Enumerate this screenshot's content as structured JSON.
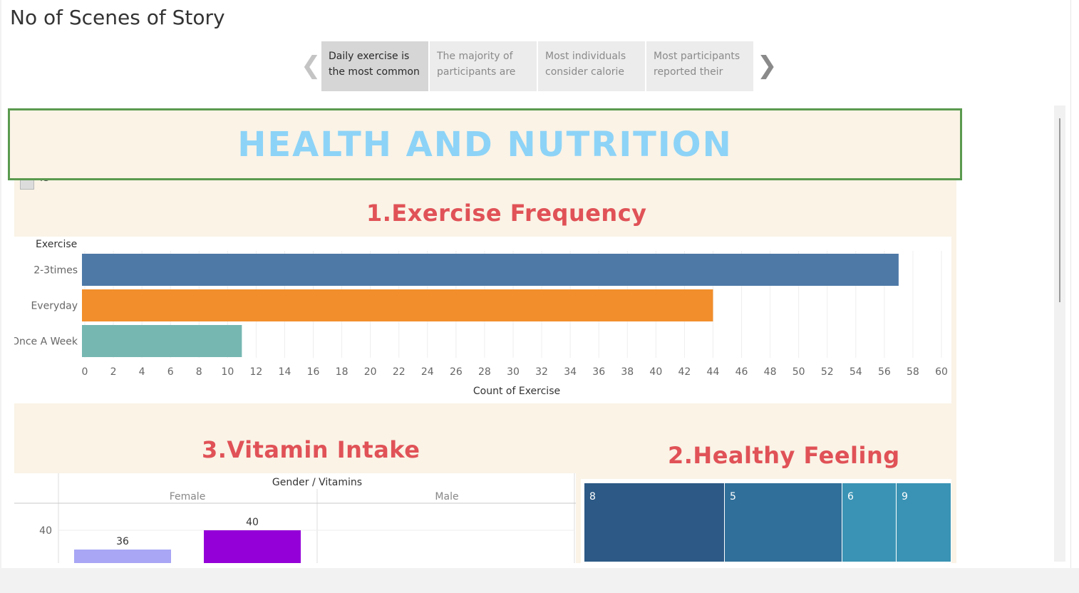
{
  "story": {
    "title": "No of Scenes of Story",
    "points": [
      {
        "label": "Daily exercise is the most common",
        "active": true
      },
      {
        "label": "The majority of participants are",
        "active": false
      },
      {
        "label": "Most individuals consider calorie",
        "active": false
      },
      {
        "label": "Most participants reported their",
        "active": false
      }
    ],
    "prev_icon": "chevron-left-icon",
    "next_icon": "chevron-right-icon"
  },
  "dashboard": {
    "banner_title": "HEALTH AND NUTRITION",
    "legend_fragment": "43",
    "section1_title": "1.Exercise Frequency",
    "section2_title": "2.Healthy Feeling",
    "section3_title": "3.Vitamin Intake"
  },
  "colors": {
    "accent_title": "#e05257",
    "banner_text": "#8dd3f7",
    "banner_border": "#5a9a4f",
    "dashboard_bg": "#faf3e6"
  },
  "chart_data": [
    {
      "type": "bar",
      "orientation": "horizontal",
      "title": "1.Exercise Frequency",
      "ylabel": "Exercise",
      "xlabel": "Count of Exercise",
      "categories": [
        "2-3times",
        "Everyday",
        "Once A Week"
      ],
      "values": [
        57,
        44,
        11
      ],
      "colors": [
        "#4e79a7",
        "#f28e2b",
        "#76b7b2"
      ],
      "xlim": [
        0,
        60
      ],
      "ticks": [
        0,
        2,
        4,
        6,
        8,
        10,
        12,
        14,
        16,
        18,
        20,
        22,
        24,
        26,
        28,
        30,
        32,
        34,
        36,
        38,
        40,
        42,
        44,
        46,
        48,
        50,
        52,
        54,
        56,
        58,
        60
      ],
      "grid": true
    },
    {
      "type": "bar",
      "title": "3.Vitamin Intake",
      "header": "Gender  /  Vitamins",
      "columns": [
        "Female",
        "Male"
      ],
      "y_tick_visible": [
        40
      ],
      "bars": [
        {
          "column": "Female",
          "value": 36,
          "color": "#a8a6f5"
        },
        {
          "column": "Female",
          "value": 40,
          "color": "#9400d8"
        }
      ],
      "grid": true
    },
    {
      "type": "treemap",
      "title": "2.Healthy Feeling",
      "cells": [
        {
          "label": "8",
          "value": 8,
          "color": "#2c5985"
        },
        {
          "label": "5",
          "value": 5,
          "color": "#306f99"
        },
        {
          "label": "6",
          "value": 6,
          "color": "#3a93b4"
        },
        {
          "label": "9",
          "value": 9,
          "color": "#3a93b4"
        }
      ]
    }
  ]
}
